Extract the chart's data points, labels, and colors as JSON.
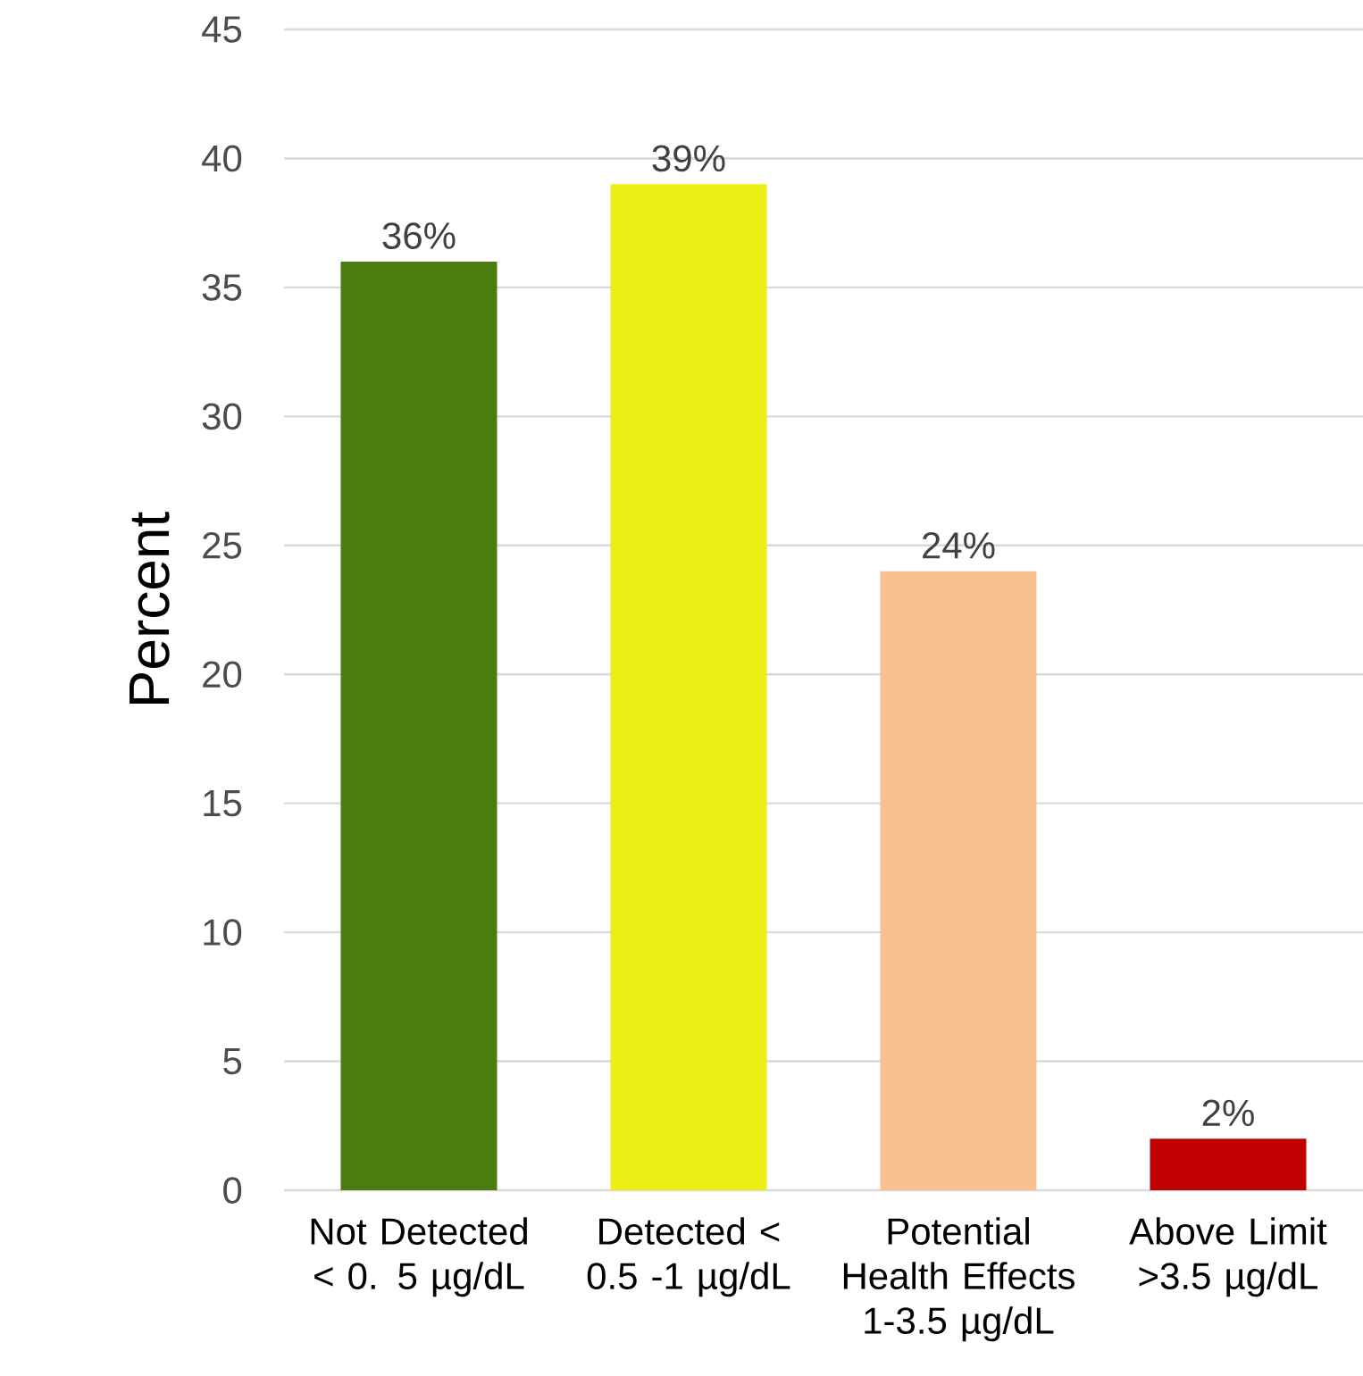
{
  "chart_data": {
    "type": "bar",
    "ylabel": "Percent",
    "categories": [
      "Not Detected < 0. 5 µg/dL",
      "Detected < 0.5 -1 µg/dL",
      "Potential Health Effects 1-3.5 µg/dL",
      "Above Limit >3.5 µg/dL"
    ],
    "values": [
      36,
      39,
      24,
      2
    ],
    "colors": [
      "#4a7c0f",
      "#eded18",
      "#f8c190",
      "#c00000"
    ],
    "value_labels": [
      "36%",
      "39%",
      "24%",
      "2%"
    ],
    "ylim": [
      0,
      45
    ],
    "yticks": [
      0,
      5,
      10,
      15,
      20,
      25,
      30,
      35,
      40,
      45
    ],
    "grid": "y"
  }
}
